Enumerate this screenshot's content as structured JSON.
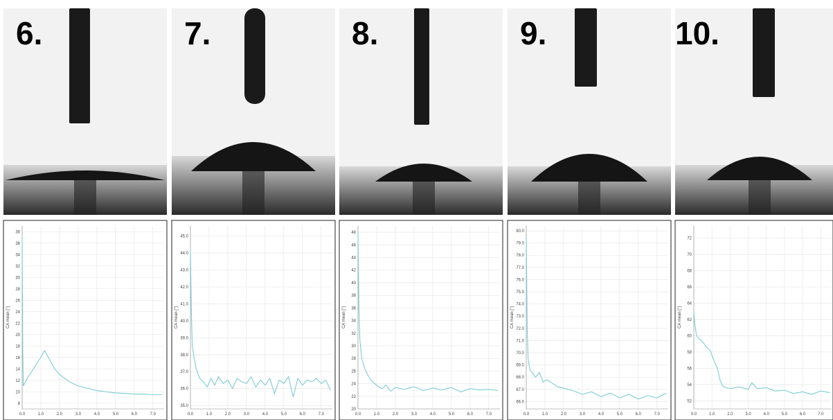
{
  "photos": [
    {
      "label": "6."
    },
    {
      "label": "7."
    },
    {
      "label": "8."
    },
    {
      "label": "9."
    },
    {
      "label": "10."
    }
  ],
  "chart_data": [
    {
      "type": "line",
      "y_label": "CA mean [°]",
      "xlim": [
        0,
        7.6
      ],
      "ylim": [
        7,
        39
      ],
      "xticks": [
        {
          "value": 0,
          "label": "0.0"
        },
        {
          "value": 1,
          "label": "1.0"
        },
        {
          "value": 2,
          "label": "2.0"
        },
        {
          "value": 3,
          "label": "3.0"
        },
        {
          "value": 4,
          "label": "4.0"
        },
        {
          "value": 5,
          "label": "5.0"
        },
        {
          "value": 6,
          "label": "6.0"
        },
        {
          "value": 7,
          "label": "7.0"
        }
      ],
      "yticks": [
        8,
        10,
        12,
        14,
        16,
        18,
        20,
        22,
        24,
        26,
        28,
        30,
        32,
        34,
        36,
        38
      ],
      "grid": true,
      "color": "#7cccd4",
      "x": [
        0,
        0.03,
        0.06,
        0.3,
        0.6,
        0.9,
        1.2,
        1.4,
        1.7,
        2.0,
        2.5,
        3.0,
        3.5,
        4.0,
        4.5,
        5.0,
        5.5,
        6.0,
        6.5,
        7.0,
        7.5
      ],
      "values": [
        37,
        18,
        11,
        12.5,
        14,
        15.5,
        17.2,
        16,
        14.2,
        13,
        11.8,
        11,
        10.6,
        10.2,
        10,
        9.8,
        9.7,
        9.6,
        9.6,
        9.5,
        9.5
      ]
    },
    {
      "type": "line",
      "y_label": "CA mean [°]",
      "xlim": [
        0,
        7.6
      ],
      "ylim": [
        34.8,
        45.6
      ],
      "xticks": [
        {
          "value": 0,
          "label": "0.0"
        },
        {
          "value": 1,
          "label": "1.0"
        },
        {
          "value": 2,
          "label": "2.0"
        },
        {
          "value": 3,
          "label": "3.0"
        },
        {
          "value": 4,
          "label": "4.0"
        },
        {
          "value": 5,
          "label": "5.0"
        },
        {
          "value": 6,
          "label": "6.0"
        },
        {
          "value": 7,
          "label": "7.0"
        }
      ],
      "yticks": [
        {
          "value": 35,
          "label": "35.0"
        },
        {
          "value": 36,
          "label": "36.0"
        },
        {
          "value": 37,
          "label": "37.0"
        },
        {
          "value": 38,
          "label": "38.0"
        },
        {
          "value": 39,
          "label": "39.0"
        },
        {
          "value": 40,
          "label": "40.0"
        },
        {
          "value": 41,
          "label": "41.0"
        },
        {
          "value": 42,
          "label": "42.0"
        },
        {
          "value": 43,
          "label": "43.0"
        },
        {
          "value": 44,
          "label": "44.0"
        },
        {
          "value": 45,
          "label": "45.0"
        }
      ],
      "grid": true,
      "color": "#7cccd4",
      "x": [
        0,
        0.05,
        0.1,
        0.2,
        0.3,
        0.5,
        0.7,
        0.9,
        1.1,
        1.3,
        1.5,
        1.75,
        2.0,
        2.25,
        2.5,
        2.75,
        3.0,
        3.25,
        3.5,
        3.75,
        4.0,
        4.25,
        4.5,
        4.75,
        5.0,
        5.25,
        5.5,
        5.75,
        6.0,
        6.25,
        6.5,
        6.75,
        7.0,
        7.25,
        7.5
      ],
      "values": [
        44.2,
        40.5,
        38.5,
        37.8,
        37.2,
        36.6,
        36.4,
        36.1,
        36.6,
        36.2,
        36.7,
        36.3,
        36.5,
        36.0,
        36.6,
        36.4,
        36.3,
        36.7,
        36.1,
        36.5,
        36.2,
        36.6,
        35.7,
        36.5,
        36.3,
        36.7,
        35.5,
        36.6,
        36.2,
        36.5,
        36.4,
        36.6,
        36.3,
        36.5,
        35.9
      ]
    },
    {
      "type": "line",
      "y_label": "CA mean [°]",
      "xlim": [
        0,
        7.6
      ],
      "ylim": [
        20,
        49
      ],
      "xticks": [
        {
          "value": 0,
          "label": "0.0"
        },
        {
          "value": 1,
          "label": "1.0"
        },
        {
          "value": 2,
          "label": "2.0"
        },
        {
          "value": 3,
          "label": "3.0"
        },
        {
          "value": 4,
          "label": "4.0"
        },
        {
          "value": 5,
          "label": "5.0"
        },
        {
          "value": 6,
          "label": "6.0"
        },
        {
          "value": 7,
          "label": "7.0"
        }
      ],
      "yticks": [
        20,
        22,
        24,
        26,
        28,
        30,
        32,
        34,
        36,
        38,
        40,
        42,
        44,
        46,
        48
      ],
      "grid": true,
      "color": "#7cccd4",
      "x": [
        0,
        0.05,
        0.1,
        0.2,
        0.35,
        0.5,
        0.7,
        0.9,
        1.1,
        1.3,
        1.5,
        1.75,
        2.0,
        2.5,
        3.0,
        3.5,
        4.0,
        4.5,
        5.0,
        5.5,
        6.0,
        6.5,
        7.0,
        7.5
      ],
      "values": [
        48,
        36,
        31,
        28,
        26.5,
        25.5,
        24.5,
        24,
        23.5,
        23.2,
        23.8,
        22.8,
        23.4,
        23.1,
        23.5,
        22.9,
        23.3,
        23.0,
        23.4,
        22.7,
        23.2,
        23.0,
        23.1,
        22.9
      ]
    },
    {
      "type": "line",
      "y_label": "CA mean [°]",
      "xlim": [
        0,
        7.6
      ],
      "ylim": [
        65.4,
        80.4
      ],
      "xticks": [
        {
          "value": 0,
          "label": "0.0"
        },
        {
          "value": 1,
          "label": "1.0"
        },
        {
          "value": 2,
          "label": "2.0"
        },
        {
          "value": 3,
          "label": "3.0"
        },
        {
          "value": 4,
          "label": "4.0"
        },
        {
          "value": 5,
          "label": "5.0"
        },
        {
          "value": 6,
          "label": "6.0"
        },
        {
          "value": 7,
          "label": "7.0"
        }
      ],
      "yticks": [
        {
          "value": 66,
          "label": "66.0"
        },
        {
          "value": 67,
          "label": "67.0"
        },
        {
          "value": 68,
          "label": "68.0"
        },
        {
          "value": 69,
          "label": "69.0"
        },
        {
          "value": 70,
          "label": "70.0"
        },
        {
          "value": 71,
          "label": "71.0"
        },
        {
          "value": 72,
          "label": "72.0"
        },
        {
          "value": 73,
          "label": "73.0"
        },
        {
          "value": 74,
          "label": "74.0"
        },
        {
          "value": 75,
          "label": "75.0"
        },
        {
          "value": 76,
          "label": "76.0"
        },
        {
          "value": 77,
          "label": "77.0"
        },
        {
          "value": 78,
          "label": "78.0"
        },
        {
          "value": 79,
          "label": "79.0"
        },
        {
          "value": 80,
          "label": "80.0"
        }
      ],
      "grid": true,
      "color": "#7cccd4",
      "x": [
        0,
        0.05,
        0.1,
        0.2,
        0.35,
        0.5,
        0.7,
        0.9,
        1.1,
        1.4,
        1.7,
        2.0,
        2.5,
        3.0,
        3.5,
        4.0,
        4.5,
        5.0,
        5.5,
        6.0,
        6.5,
        7.0,
        7.5
      ],
      "values": [
        79.5,
        72,
        69.5,
        68.6,
        68.3,
        68.0,
        68.4,
        67.6,
        67.8,
        67.5,
        67.2,
        67.1,
        66.9,
        66.6,
        66.8,
        66.4,
        66.7,
        66.3,
        66.6,
        66.2,
        66.5,
        66.3,
        66.7
      ]
    },
    {
      "type": "line",
      "y_label": "CA mean [°]",
      "xlim": [
        0,
        7.6
      ],
      "ylim": [
        51,
        73.5
      ],
      "xticks": [
        {
          "value": 0,
          "label": "0.0"
        },
        {
          "value": 1,
          "label": "1.0"
        },
        {
          "value": 2,
          "label": "2.0"
        },
        {
          "value": 3,
          "label": "3.0"
        },
        {
          "value": 4,
          "label": "4.0"
        },
        {
          "value": 5,
          "label": "5.0"
        },
        {
          "value": 6,
          "label": "6.0"
        },
        {
          "value": 7,
          "label": "7.0"
        }
      ],
      "yticks": [
        52,
        54,
        56,
        58,
        60,
        62,
        64,
        66,
        68,
        70,
        72
      ],
      "grid": true,
      "color": "#7cccd4",
      "x": [
        0,
        0.05,
        0.15,
        0.3,
        0.5,
        0.7,
        0.9,
        1.1,
        1.3,
        1.45,
        1.6,
        1.8,
        2.0,
        2.5,
        3.0,
        3.2,
        3.5,
        4.0,
        4.5,
        5.0,
        5.5,
        6.0,
        6.5,
        7.0,
        7.5
      ],
      "values": [
        63,
        61.5,
        60,
        59.6,
        59.2,
        58.6,
        58.2,
        57,
        56,
        54.5,
        53.8,
        53.6,
        53.5,
        53.7,
        53.4,
        54.2,
        53.5,
        53.6,
        53.2,
        53.3,
        52.9,
        53.1,
        52.8,
        53.2,
        53.0
      ]
    }
  ]
}
